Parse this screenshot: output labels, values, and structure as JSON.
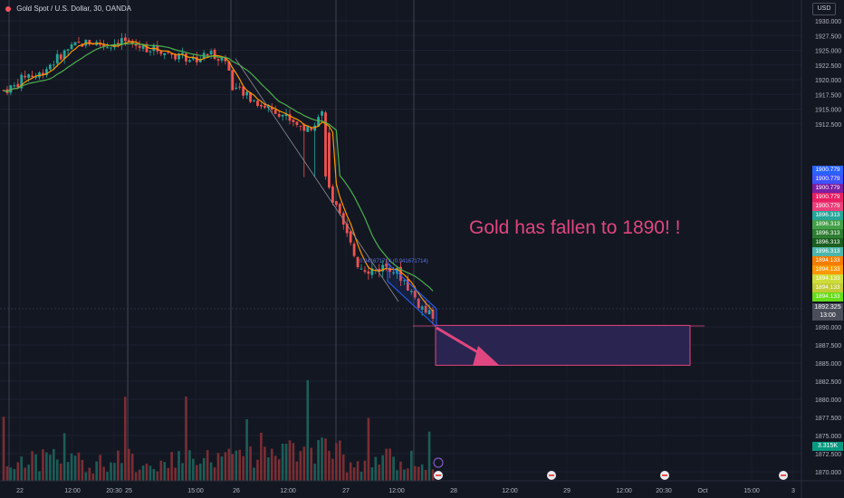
{
  "header": {
    "symbol": "Gold Spot / U.S. Dollar, 30, OANDA",
    "currency_button": "USD"
  },
  "annotation_text": "Gold has fallen to 1890! !",
  "fib_label": "0.941671714 (0.941671714)",
  "indicator_tags": [
    {
      "value": "1900.779",
      "color": "#2962ff"
    },
    {
      "value": "1900.779",
      "color": "#3f51ff"
    },
    {
      "value": "1900.779",
      "color": "#7b1fa2"
    },
    {
      "value": "1900.779",
      "color": "#e91e63"
    },
    {
      "value": "1900.779",
      "color": "#ec407a"
    },
    {
      "value": "1896.313",
      "color": "#26a69a"
    },
    {
      "value": "1896.313",
      "color": "#43a047"
    },
    {
      "value": "1896.313",
      "color": "#2e7d32"
    },
    {
      "value": "1896.313",
      "color": "#1b5e20"
    },
    {
      "value": "1896.313",
      "color": "#4db6ac"
    },
    {
      "value": "1894.133",
      "color": "#f57c00"
    },
    {
      "value": "1894.133",
      "color": "#ff9800"
    },
    {
      "value": "1894.133",
      "color": "#cddc39"
    },
    {
      "value": "1894.133",
      "color": "#c0ca33"
    },
    {
      "value": "1894.133",
      "color": "#64dd17"
    }
  ],
  "current_price": {
    "value": "1892.325",
    "countdown": "13:00"
  },
  "volume_tag": "3.315K",
  "colors": {
    "background": "#131722",
    "up": "#26a69a",
    "down": "#ef5350",
    "ma_fast": "#ff9800",
    "ma_slow": "#4caf50",
    "annotation": "#e0467f",
    "box_fill": "#2a2550",
    "box_border": "#e0467f",
    "channel": "#2962ff"
  },
  "chart_data": {
    "type": "candlestick",
    "title": "Gold Spot / U.S. Dollar, 30, OANDA",
    "yaxis": {
      "ticks": [
        "1930.000",
        "1927.500",
        "1925.000",
        "1922.500",
        "1920.000",
        "1917.500",
        "1915.000",
        "1912.500",
        "1890.000",
        "1887.500",
        "1885.000",
        "1882.500",
        "1880.000",
        "1877.500",
        "1875.000",
        "1872.500",
        "1870.000"
      ],
      "ylim": [
        1869.5,
        1931.0
      ]
    },
    "xaxis": {
      "ticks": [
        "22",
        "12:00",
        "20:30",
        "25",
        "15:00",
        "26",
        "12:00",
        "27",
        "12:00",
        "28",
        "12:00",
        "29",
        "12:00",
        "20:30",
        "Oct",
        "15:00",
        "3"
      ]
    },
    "session_breaks": [
      "22",
      "25",
      "26",
      "27",
      "28"
    ],
    "close_path": [
      {
        "t": 0,
        "y": 1918.2
      },
      {
        "t": 3,
        "y": 1918.8
      },
      {
        "t": 6,
        "y": 1920.9
      },
      {
        "t": 9,
        "y": 1920.6
      },
      {
        "t": 12,
        "y": 1922.3
      },
      {
        "t": 16,
        "y": 1924.5
      },
      {
        "t": 20,
        "y": 1926.0
      },
      {
        "t": 24,
        "y": 1926.4
      },
      {
        "t": 28,
        "y": 1925.7
      },
      {
        "t": 32,
        "y": 1926.8
      },
      {
        "t": 36,
        "y": 1925.7
      },
      {
        "t": 40,
        "y": 1925.3
      },
      {
        "t": 44,
        "y": 1924.7
      },
      {
        "t": 48,
        "y": 1923.9
      },
      {
        "t": 52,
        "y": 1923.5
      },
      {
        "t": 56,
        "y": 1924.5
      },
      {
        "t": 60,
        "y": 1923.4
      },
      {
        "t": 62,
        "y": 1918.7
      },
      {
        "t": 66,
        "y": 1917.1
      },
      {
        "t": 70,
        "y": 1915.6
      },
      {
        "t": 74,
        "y": 1914.7
      },
      {
        "t": 78,
        "y": 1913.1
      },
      {
        "t": 82,
        "y": 1911.4
      },
      {
        "t": 86,
        "y": 1914.4
      },
      {
        "t": 88,
        "y": 1908.7
      },
      {
        "t": 92,
        "y": 1903.4
      },
      {
        "t": 96,
        "y": 1898.4
      },
      {
        "t": 100,
        "y": 1897.8
      },
      {
        "t": 104,
        "y": 1898.6
      },
      {
        "t": 108,
        "y": 1896.6
      },
      {
        "t": 112,
        "y": 1893.3
      },
      {
        "t": 116,
        "y": 1891.0
      }
    ],
    "target_zone": {
      "price_top": 1890.2,
      "price_bottom": 1884.7
    },
    "volume_tag": "3.315K",
    "last_price": "1892.325"
  }
}
